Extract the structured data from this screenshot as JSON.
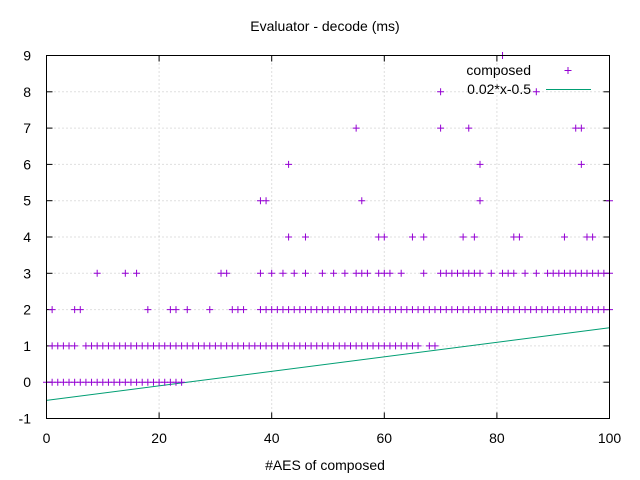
{
  "chart_data": {
    "type": "scatter",
    "title": "Evaluator - decode (ms)",
    "xlabel": "#AES of composed",
    "ylabel": "",
    "xlim": [
      0,
      100
    ],
    "ylim": [
      -1,
      9
    ],
    "x_ticks": [
      0,
      20,
      40,
      60,
      80,
      100
    ],
    "y_ticks": [
      -1,
      0,
      1,
      2,
      3,
      4,
      5,
      6,
      7,
      8,
      9
    ],
    "grid": true,
    "legend_position": "top-right",
    "series": [
      {
        "name": "composed",
        "kind": "points",
        "marker": "+",
        "color": "#9400d3",
        "groups": [
          {
            "y": 0,
            "x": [
              0,
              1,
              2,
              3,
              4,
              5,
              6,
              7,
              8,
              9,
              10,
              11,
              12,
              13,
              14,
              15,
              16,
              17,
              18,
              19,
              20,
              21,
              22,
              23,
              24
            ]
          },
          {
            "y": 1,
            "x": [
              1,
              2,
              3,
              4,
              5,
              7,
              8,
              9,
              10,
              11,
              12,
              13,
              14,
              15,
              16,
              17,
              18,
              19,
              20,
              21,
              22,
              23,
              24,
              25,
              26,
              27,
              28,
              29,
              30,
              31,
              32,
              33,
              34,
              35,
              36,
              37,
              38,
              39,
              40,
              41,
              42,
              43,
              44,
              45,
              46,
              47,
              48,
              49,
              50,
              51,
              52,
              53,
              54,
              55,
              56,
              57,
              58,
              59,
              60,
              61,
              62,
              63,
              64,
              65,
              66,
              68,
              69
            ]
          },
          {
            "y": 2,
            "x": [
              1,
              5,
              6,
              18,
              22,
              23,
              25,
              29,
              33,
              34,
              35,
              38,
              39,
              40,
              41,
              42,
              43,
              44,
              45,
              46,
              47,
              48,
              49,
              50,
              51,
              52,
              53,
              54,
              55,
              56,
              57,
              58,
              59,
              60,
              61,
              62,
              63,
              64,
              65,
              66,
              67,
              68,
              69,
              70,
              71,
              72,
              73,
              74,
              75,
              76,
              77,
              78,
              79,
              80,
              81,
              82,
              83,
              84,
              85,
              86,
              87,
              88,
              89,
              90,
              91,
              92,
              93,
              94,
              95,
              96,
              97,
              98,
              99,
              100
            ]
          },
          {
            "y": 3,
            "x": [
              9,
              14,
              16,
              31,
              32,
              38,
              40,
              42,
              44,
              46,
              49,
              51,
              53,
              55,
              56,
              57,
              59,
              60,
              61,
              63,
              67,
              70,
              71,
              72,
              73,
              74,
              75,
              76,
              77,
              79,
              81,
              82,
              83,
              85,
              87,
              89,
              90,
              91,
              92,
              93,
              94,
              95,
              96,
              97,
              98,
              99,
              100
            ]
          },
          {
            "y": 4,
            "x": [
              43,
              46,
              59,
              60,
              65,
              67,
              74,
              76,
              83,
              84,
              92,
              96,
              97
            ]
          },
          {
            "y": 5,
            "x": [
              38,
              39,
              56,
              77,
              100
            ]
          },
          {
            "y": 6,
            "x": [
              43,
              77,
              95
            ]
          },
          {
            "y": 7,
            "x": [
              55,
              70,
              75,
              94,
              95
            ]
          },
          {
            "y": 8,
            "x": [
              70,
              87
            ]
          },
          {
            "y": 9,
            "x": [
              81
            ]
          }
        ]
      },
      {
        "name": "0.02*x-0.5",
        "kind": "line",
        "color": "#009e73",
        "x": [
          0,
          100
        ],
        "y": [
          -0.5,
          1.5
        ]
      }
    ]
  }
}
